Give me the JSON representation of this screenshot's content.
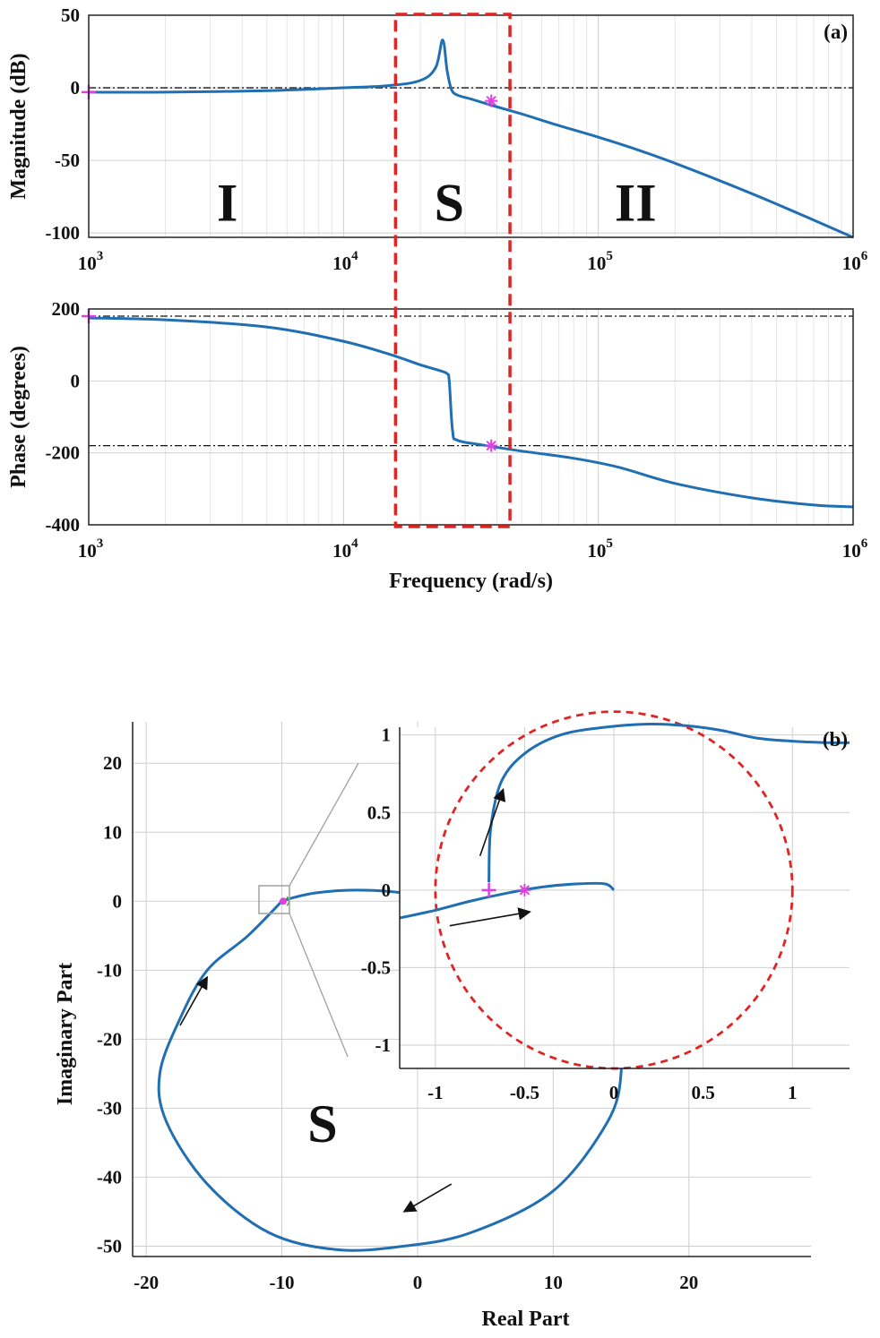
{
  "colors": {
    "curve": "#1f6fb2",
    "marker": "#e040e0",
    "highlight": "#e02424",
    "reference": "#111111",
    "arrow": "#111111",
    "grid": "#cfcfcf",
    "zoom": "#a0a0a0"
  },
  "chart_data": [
    {
      "type": "line",
      "panel": "(a)",
      "subplot": "magnitude",
      "ylabel": "Magnitude (dB)",
      "x_scale": "log",
      "xlim": [
        1000,
        1000000
      ],
      "ylim": [
        -103,
        50
      ],
      "x_ticks": [
        {
          "base": "10",
          "exp": "3"
        },
        {
          "base": "10",
          "exp": "4"
        },
        {
          "base": "10",
          "exp": "5"
        },
        {
          "base": "10",
          "exp": "6"
        }
      ],
      "y_ticks": [
        "50",
        "0",
        "-50",
        "-100"
      ],
      "y_tick_values": [
        50,
        0,
        -50,
        -100
      ],
      "reference_line_y": 0,
      "series": [
        {
          "x": [
            1000,
            2000,
            5000,
            10000,
            15000,
            20000,
            23000,
            24500,
            25500,
            26500,
            28000,
            32000,
            38000,
            50000,
            70000,
            100000,
            150000,
            200000,
            300000,
            500000,
            1000000
          ],
          "y": [
            -3,
            -3,
            -2,
            0,
            1.5,
            5,
            14,
            33,
            12,
            -1,
            -5,
            -8,
            -12,
            -18,
            -26,
            -34,
            -44,
            -52,
            -64,
            -80,
            -103
          ]
        }
      ],
      "markers": [
        {
          "x": 1000,
          "y": -3,
          "symbol": "+"
        },
        {
          "x": 38000,
          "y": -9,
          "symbol": "*"
        }
      ],
      "region_labels": [
        {
          "label": "I",
          "x": 3500,
          "y": -78
        },
        {
          "label": "S",
          "x": 26000,
          "y": -78
        },
        {
          "label": "II",
          "x": 140000,
          "y": -78
        }
      ],
      "highlight_box": {
        "x_from": 16000,
        "x_to": 45000
      }
    },
    {
      "type": "line",
      "panel": "(a)",
      "subplot": "phase",
      "ylabel": "Phase (degrees)",
      "xlabel": "Frequency (rad/s)",
      "x_scale": "log",
      "xlim": [
        1000,
        1000000
      ],
      "ylim": [
        -400,
        200
      ],
      "x_ticks": [
        {
          "base": "10",
          "exp": "3"
        },
        {
          "base": "10",
          "exp": "4"
        },
        {
          "base": "10",
          "exp": "5"
        },
        {
          "base": "10",
          "exp": "6"
        }
      ],
      "y_ticks": [
        "200",
        "0",
        "-200",
        "-400"
      ],
      "y_tick_values": [
        200,
        0,
        -200,
        -400
      ],
      "reference_lines_y": [
        180,
        -180
      ],
      "series": [
        {
          "x": [
            1000,
            2000,
            5000,
            10000,
            15000,
            20000,
            24000,
            25500,
            26000,
            26800,
            28000,
            35000,
            50000,
            80000,
            120000,
            200000,
            400000,
            700000,
            1000000
          ],
          "y": [
            175,
            170,
            150,
            110,
            75,
            45,
            28,
            20,
            0,
            -140,
            -165,
            -178,
            -195,
            -215,
            -240,
            -285,
            -325,
            -345,
            -350
          ]
        }
      ],
      "markers": [
        {
          "x": 1000,
          "y": 180,
          "symbol": "+"
        },
        {
          "x": 38000,
          "y": -180,
          "symbol": "*"
        }
      ]
    },
    {
      "type": "line",
      "panel": "(b)",
      "subplot": "nyquist",
      "xlabel": "Real Part",
      "ylabel": "Imaginary Part",
      "xlim": [
        -21,
        29
      ],
      "ylim": [
        -51.5,
        26
      ],
      "x_ticks": [
        "-20",
        "-10",
        "0",
        "10",
        "20"
      ],
      "x_tick_values": [
        -20,
        -10,
        0,
        10,
        20
      ],
      "y_ticks": [
        "20",
        "10",
        "0",
        "-10",
        "-20",
        "-30",
        "-40",
        "-50"
      ],
      "y_tick_values": [
        20,
        10,
        0,
        -10,
        -20,
        -30,
        -40,
        -50
      ],
      "region_label": {
        "label": "S",
        "x": -7,
        "y": -32
      },
      "series": [
        {
          "x": [
            -10,
            -9,
            -7.5,
            -5,
            -2,
            1,
            3.5,
            8,
            12,
            14.5,
            15,
            14,
            10,
            4,
            -1,
            -6,
            -11,
            -15.5,
            -18.5,
            -19,
            -17.5,
            -15.5,
            -12.5,
            -10
          ],
          "y": [
            0,
            0.6,
            1.2,
            1.6,
            1.4,
            0.6,
            0,
            -5,
            -12,
            -20,
            -25,
            -32,
            -42,
            -48,
            -50,
            -50.5,
            -48,
            -41,
            -32,
            -25,
            -17,
            -10,
            -5,
            0
          ]
        }
      ],
      "markers": [
        {
          "x": -9.9,
          "y": 0,
          "symbol": "dot"
        }
      ],
      "arrows": [
        {
          "from": [
            -17.5,
            -18
          ],
          "to": [
            -15.5,
            -11
          ]
        },
        {
          "from": [
            2.5,
            -41
          ],
          "to": [
            -1,
            -45
          ]
        }
      ]
    },
    {
      "type": "line",
      "panel": "(b)",
      "subplot": "nyquist-zoom",
      "xlim": [
        -1.2,
        1.32
      ],
      "ylim": [
        -1.15,
        1.05
      ],
      "x_ticks": [
        "-1",
        "-0.5",
        "0",
        "0.5",
        "1"
      ],
      "x_tick_values": [
        -1,
        -0.5,
        0,
        0.5,
        1
      ],
      "y_ticks": [
        "1",
        "0.5",
        "0",
        "-0.5",
        "-1"
      ],
      "y_tick_values": [
        1,
        0.5,
        0,
        -0.5,
        -1
      ],
      "unit_circle": {
        "center": [
          0,
          0
        ],
        "radius": 1
      },
      "series": [
        {
          "x": [
            -1.2,
            -1.0,
            -0.8,
            -0.6,
            -0.4,
            -0.2,
            -0.05,
            0.0
          ],
          "y": [
            -0.18,
            -0.13,
            -0.07,
            -0.02,
            0.02,
            0.04,
            0.04,
            0.0
          ]
        },
        {
          "x": [
            -0.7,
            -0.69,
            -0.63,
            -0.5,
            -0.3,
            -0.05,
            0.2,
            0.4,
            0.6,
            0.8,
            1.0,
            1.2,
            1.32
          ],
          "y": [
            0.05,
            0.4,
            0.7,
            0.88,
            1.0,
            1.05,
            1.07,
            1.06,
            1.03,
            0.98,
            0.96,
            0.95,
            0.95
          ]
        }
      ],
      "markers": [
        {
          "x": -0.7,
          "y": 0,
          "symbol": "+"
        },
        {
          "x": -0.5,
          "y": 0,
          "symbol": "*"
        }
      ],
      "arrows": [
        {
          "from": [
            -0.75,
            0.22
          ],
          "to": [
            -0.62,
            0.65
          ]
        },
        {
          "from": [
            -0.92,
            -0.23
          ],
          "to": [
            -0.47,
            -0.14
          ]
        }
      ]
    }
  ],
  "labels": {
    "panel_a": "(a)",
    "panel_b": "(b)"
  }
}
